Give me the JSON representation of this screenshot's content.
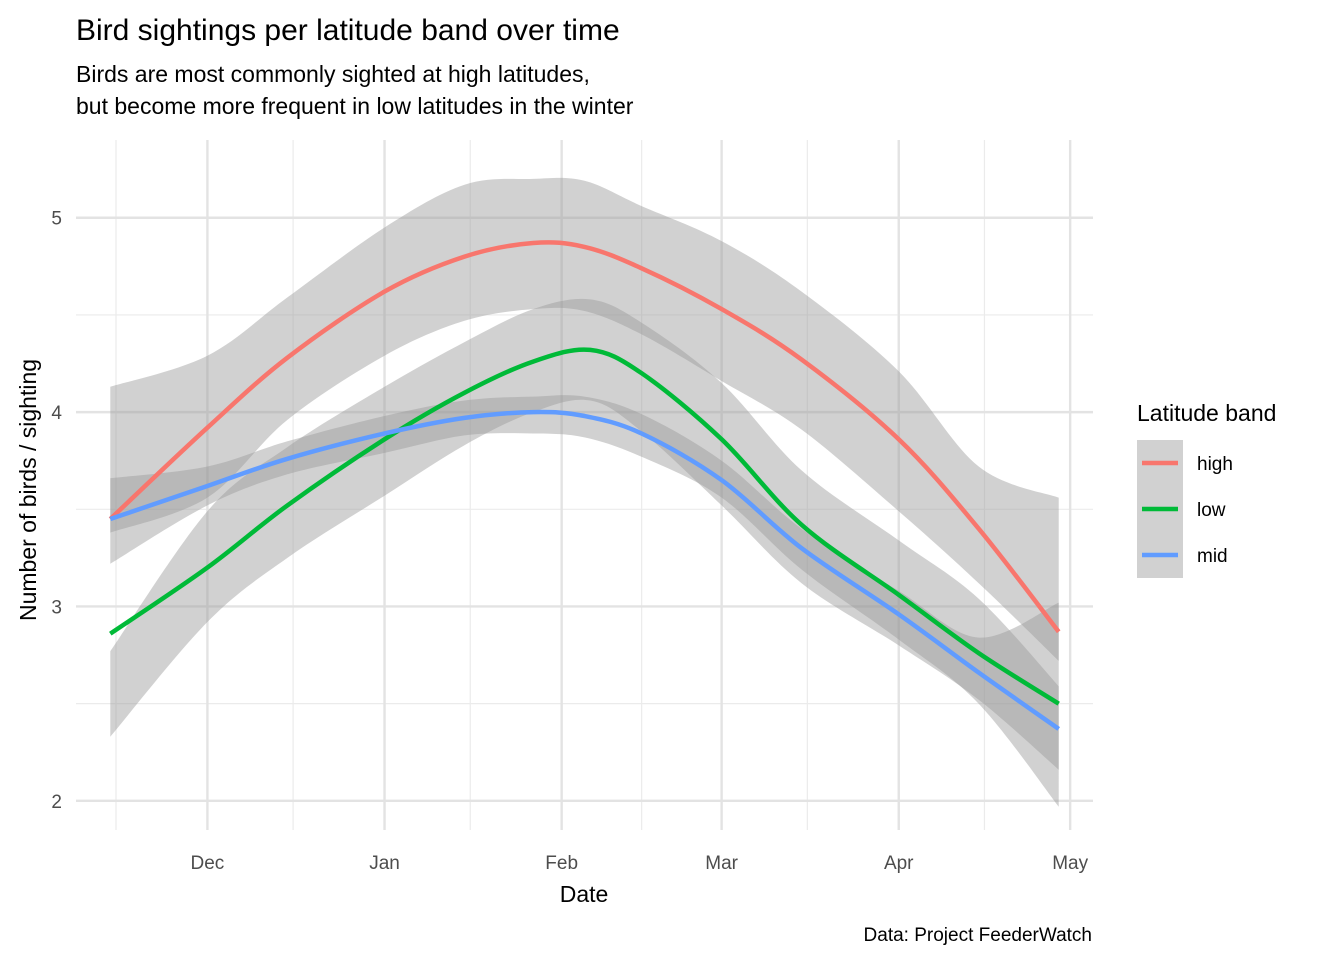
{
  "chart_data": {
    "type": "line",
    "title": "Bird sightings per latitude band over time",
    "subtitle_lines": [
      "Birds are most commonly sighted at high latitudes,",
      "but become more frequent in low latitudes in the winter"
    ],
    "xlabel": "Date",
    "ylabel": "Number of birds / sighting",
    "caption": "Data: Project FeederWatch",
    "xlim": [
      "2020-11-08",
      "2021-05-05"
    ],
    "ylim": [
      1.85,
      5.4
    ],
    "x_ticks": [
      {
        "date": "2020-12-01",
        "label": "Dec"
      },
      {
        "date": "2021-01-01",
        "label": "Jan"
      },
      {
        "date": "2021-02-01",
        "label": "Feb"
      },
      {
        "date": "2021-03-01",
        "label": "Mar"
      },
      {
        "date": "2021-04-01",
        "label": "Apr"
      },
      {
        "date": "2021-05-01",
        "label": "May"
      }
    ],
    "x_minor_ticks": [
      "2020-11-15",
      "2020-12-16",
      "2021-01-16",
      "2021-02-15",
      "2021-03-16",
      "2021-04-16"
    ],
    "y_ticks": [
      2,
      3,
      4,
      5
    ],
    "y_minor_ticks": [
      2.5,
      3.5,
      4.5
    ],
    "grid": true,
    "legend": {
      "title": "Latitude band",
      "position": "right"
    },
    "series": [
      {
        "name": "high",
        "color": "#F8766D",
        "x": [
          "2020-11-14",
          "2020-12-01",
          "2020-12-15",
          "2021-01-01",
          "2021-01-15",
          "2021-01-27",
          "2021-02-05",
          "2021-02-15",
          "2021-03-01",
          "2021-03-15",
          "2021-04-01",
          "2021-04-15",
          "2021-04-29"
        ],
        "y": [
          3.45,
          3.92,
          4.28,
          4.62,
          4.8,
          4.87,
          4.85,
          4.74,
          4.53,
          4.27,
          3.86,
          3.4,
          2.87
        ],
        "lower": [
          3.38,
          3.56,
          3.96,
          4.29,
          4.47,
          4.53,
          4.52,
          4.4,
          4.16,
          3.91,
          3.49,
          3.12,
          2.72
        ],
        "upper": [
          4.13,
          4.29,
          4.59,
          4.95,
          5.17,
          5.2,
          5.19,
          5.06,
          4.88,
          4.62,
          4.21,
          3.72,
          3.56
        ]
      },
      {
        "name": "low",
        "color": "#00BA38",
        "x": [
          "2020-11-14",
          "2020-12-01",
          "2020-12-15",
          "2021-01-01",
          "2021-01-15",
          "2021-01-27",
          "2021-02-06",
          "2021-02-15",
          "2021-03-01",
          "2021-03-15",
          "2021-04-01",
          "2021-04-15",
          "2021-04-29"
        ],
        "y": [
          2.86,
          3.2,
          3.52,
          3.86,
          4.1,
          4.26,
          4.32,
          4.2,
          3.86,
          3.42,
          3.06,
          2.76,
          2.5
        ],
        "lower": [
          2.33,
          2.92,
          3.25,
          3.57,
          3.83,
          4.0,
          4.06,
          3.9,
          3.52,
          3.12,
          2.8,
          2.52,
          2.16
        ],
        "upper": [
          2.77,
          3.49,
          3.82,
          4.13,
          4.36,
          4.53,
          4.58,
          4.46,
          4.15,
          3.7,
          3.34,
          3.04,
          2.59
        ]
      },
      {
        "name": "mid",
        "color": "#619CFF",
        "x": [
          "2020-11-14",
          "2020-12-01",
          "2020-12-15",
          "2021-01-01",
          "2021-01-15",
          "2021-01-27",
          "2021-02-05",
          "2021-02-15",
          "2021-03-01",
          "2021-03-15",
          "2021-04-01",
          "2021-04-15",
          "2021-04-29"
        ],
        "y": [
          3.45,
          3.62,
          3.76,
          3.89,
          3.97,
          4.0,
          3.98,
          3.89,
          3.65,
          3.3,
          2.96,
          2.66,
          2.37
        ],
        "lower": [
          3.22,
          3.52,
          3.68,
          3.79,
          3.88,
          3.89,
          3.87,
          3.77,
          3.56,
          3.19,
          2.83,
          2.5,
          1.97
        ],
        "upper": [
          3.66,
          3.72,
          3.85,
          3.98,
          4.06,
          4.08,
          4.08,
          3.99,
          3.75,
          3.4,
          3.08,
          2.84,
          3.02
        ]
      }
    ]
  }
}
